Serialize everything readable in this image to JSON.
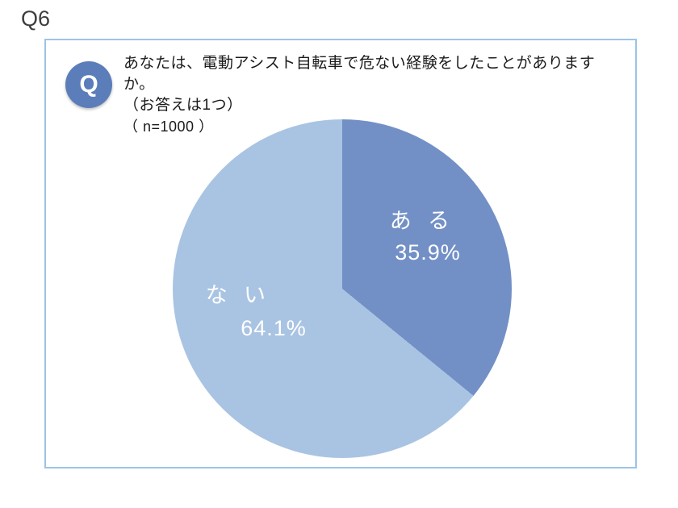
{
  "page": {
    "label": "Q6"
  },
  "question": {
    "badge": "Q",
    "line1": "あなたは、電動アシスト自転車で危ない経験をしたことがありますか。",
    "line2": "（お答えは1つ）",
    "line3": "（ n=1000 ）"
  },
  "chart_data": {
    "type": "pie",
    "title": "あなたは、電動アシスト自転車で危ない経験をしたことがありますか。（お答えは1つ）（ n=1000 ）",
    "categories": [
      "ある",
      "ない"
    ],
    "values": [
      35.9,
      64.1
    ],
    "unit": "%",
    "sample_size": 1000,
    "start_angle_deg": 0,
    "direction": "clockwise",
    "colors": [
      "#7290c6",
      "#a9c4e2"
    ],
    "legend_position": "none",
    "slice_labels": [
      {
        "label": "ある",
        "value_text": "35.9%"
      },
      {
        "label": "ない",
        "value_text": "64.1%"
      }
    ]
  },
  "colors": {
    "panel_border": "#9dc3e6",
    "badge_background": "#5b7db9",
    "label_text": "#ffffff"
  }
}
